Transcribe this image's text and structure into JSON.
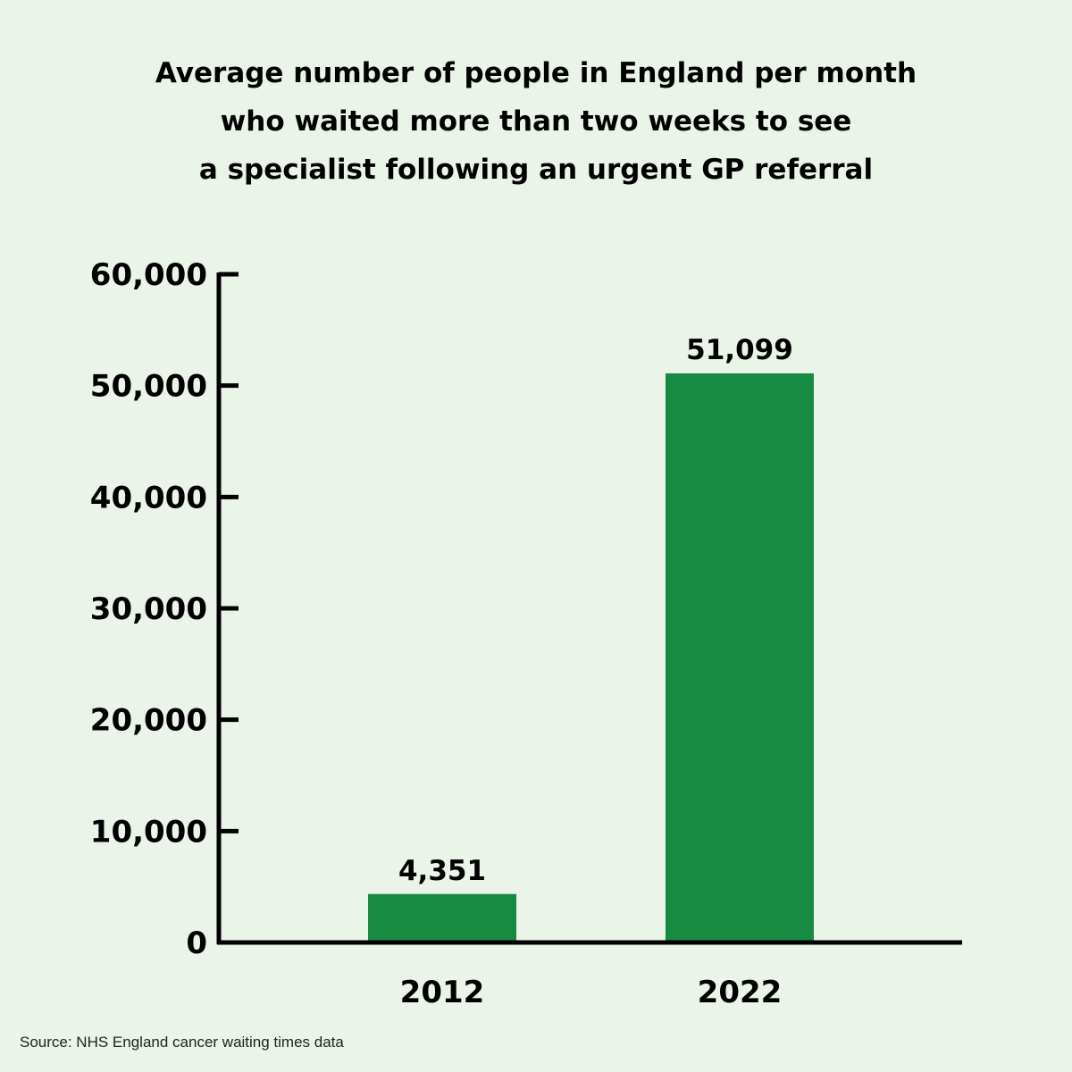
{
  "chart_data": {
    "type": "bar",
    "title_lines": [
      "Average number of people in England per month",
      "who waited more than two weeks to see",
      "a specialist following an urgent GP referral"
    ],
    "categories": [
      "2012",
      "2022"
    ],
    "values": [
      4351,
      51099
    ],
    "data_labels": [
      "4,351",
      "51,099"
    ],
    "ylim": [
      0,
      60000
    ],
    "yticks": [
      0,
      10000,
      20000,
      30000,
      40000,
      50000,
      60000
    ],
    "ytick_labels": [
      "0",
      "10,000",
      "20,000",
      "30,000",
      "40,000",
      "50,000",
      "60,000"
    ],
    "xlabel": "",
    "ylabel": "",
    "grid": false,
    "bar_color": "#178a43",
    "axis_color": "#000000"
  },
  "source": "Source: NHS England cancer waiting times data"
}
